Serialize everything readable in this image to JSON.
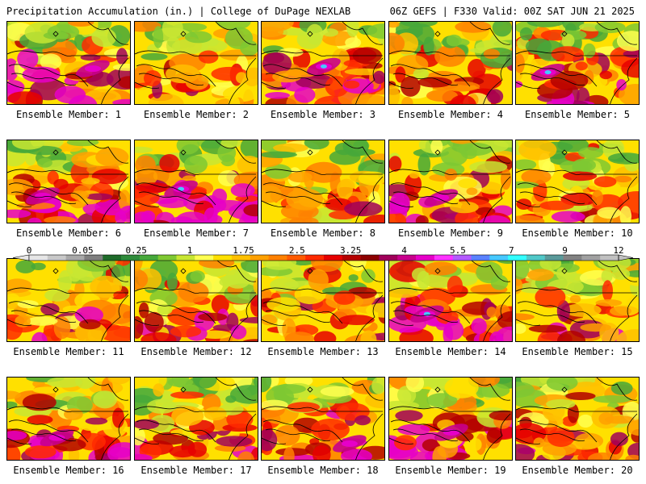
{
  "header": {
    "left": "Precipitation Accumulation (in.) | College of DuPage NEXLAB",
    "right": "06Z GEFS | F330 Valid: 00Z SAT JUN 21 2025"
  },
  "panels": [
    {
      "label": "Ensemble Member: 1",
      "heavy": 0.6
    },
    {
      "label": "Ensemble Member: 2",
      "heavy": 0.3
    },
    {
      "label": "Ensemble Member: 3",
      "heavy": 0.7
    },
    {
      "label": "Ensemble Member: 4",
      "heavy": 0.4
    },
    {
      "label": "Ensemble Member: 5",
      "heavy": 0.7
    },
    {
      "label": "Ensemble Member: 6",
      "heavy": 0.6
    },
    {
      "label": "Ensemble Member: 7",
      "heavy": 0.9
    },
    {
      "label": "Ensemble Member: 8",
      "heavy": 0.3
    },
    {
      "label": "Ensemble Member: 9",
      "heavy": 0.6
    },
    {
      "label": "Ensemble Member: 10",
      "heavy": 0.4
    },
    {
      "label": "Ensemble Member: 11",
      "heavy": 0.5
    },
    {
      "label": "Ensemble Member: 12",
      "heavy": 0.5
    },
    {
      "label": "Ensemble Member: 13",
      "heavy": 0.4
    },
    {
      "label": "Ensemble Member: 14",
      "heavy": 0.7
    },
    {
      "label": "Ensemble Member: 15",
      "heavy": 0.5
    },
    {
      "label": "Ensemble Member: 16",
      "heavy": 0.6
    },
    {
      "label": "Ensemble Member: 17",
      "heavy": 0.5
    },
    {
      "label": "Ensemble Member: 18",
      "heavy": 0.6
    },
    {
      "label": "Ensemble Member: 19",
      "heavy": 0.6
    },
    {
      "label": "Ensemble Member: 20",
      "heavy": 0.5
    }
  ],
  "colorbar": {
    "tick_labels": [
      "0",
      "0.05",
      "0.25",
      "1",
      "1.75",
      "2.5",
      "3.25",
      "4",
      "5.5",
      "7",
      "9",
      "12"
    ],
    "colors": [
      "#e6e6e6",
      "#c8c8c8",
      "#a8a8a8",
      "#7f7f7f",
      "#1f6b2a",
      "#2e8b3a",
      "#46a83a",
      "#7ec832",
      "#c8e632",
      "#ffff50",
      "#ffe000",
      "#ffc000",
      "#ffa000",
      "#ff8000",
      "#ff5a00",
      "#ff2a00",
      "#e60000",
      "#b40000",
      "#8c0000",
      "#a0005a",
      "#c8008c",
      "#e600c8",
      "#ff32ff",
      "#b45aff",
      "#5a82ff",
      "#46c8ff",
      "#32ffff",
      "#50c8c8",
      "#5a9a9a",
      "#828282",
      "#a0a0a0",
      "#c0c0c0"
    ]
  }
}
